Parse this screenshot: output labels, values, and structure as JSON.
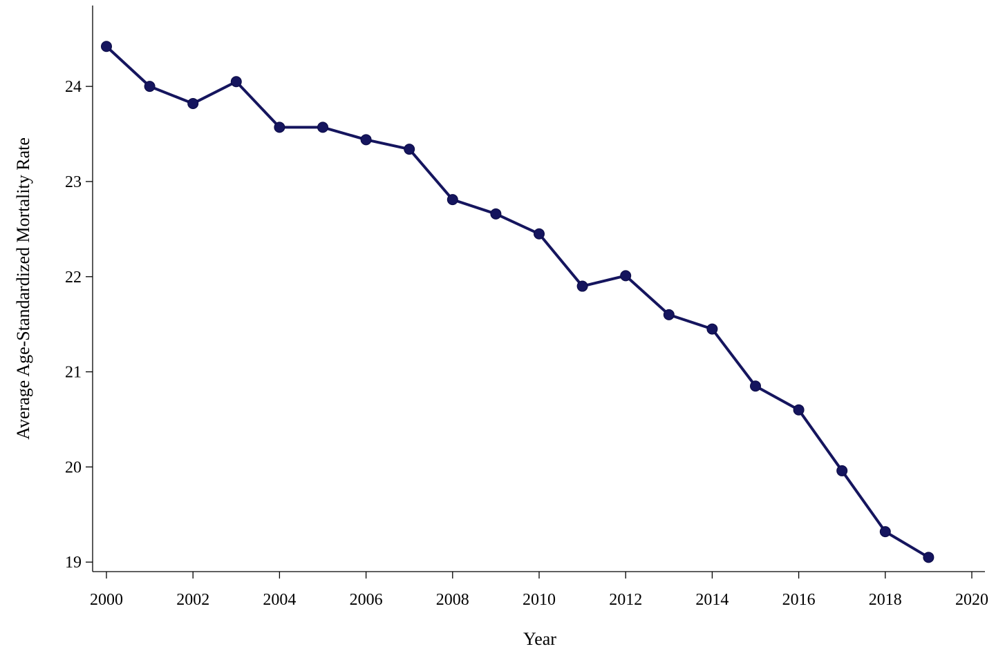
{
  "chart_data": {
    "type": "line",
    "title": "",
    "xlabel": "Year",
    "ylabel": "Average Age-Standardized Mortality Rate",
    "xlim": [
      2000,
      2020
    ],
    "ylim": [
      18.9,
      24.85
    ],
    "xticks": [
      "2000",
      "2002",
      "2004",
      "2006",
      "2008",
      "2010",
      "2012",
      "2014",
      "2016",
      "2018",
      "2020"
    ],
    "yticks": [
      "19",
      "20",
      "21",
      "22",
      "23",
      "24"
    ],
    "grid": false,
    "legend": "none",
    "series": [
      {
        "color": "#15155e",
        "marker": "circle",
        "x": [
          2000,
          2001,
          2002,
          2003,
          2004,
          2005,
          2006,
          2007,
          2008,
          2009,
          2010,
          2011,
          2012,
          2013,
          2014,
          2015,
          2016,
          2017,
          2018,
          2019
        ],
        "y": [
          24.42,
          24.0,
          23.82,
          24.05,
          23.57,
          23.57,
          23.44,
          23.34,
          22.81,
          22.66,
          22.45,
          21.9,
          22.01,
          21.6,
          21.45,
          20.85,
          20.6,
          19.96,
          19.32,
          19.05
        ]
      }
    ]
  }
}
